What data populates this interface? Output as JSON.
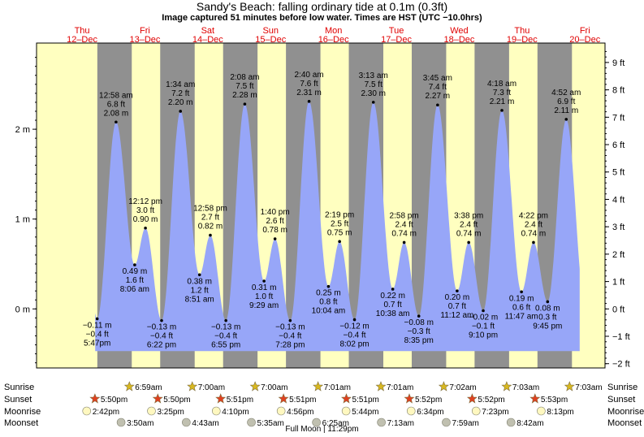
{
  "header": {
    "title": "Sandy's Beach: falling  ordinary tide at 0.1m (0.3ft)",
    "subtitle": "Image captured 51 minutes before low water. Times are HST (UTC −10.0hrs)"
  },
  "chart_data": {
    "type": "area",
    "title": "Sandy's Beach: falling  ordinary tide at 0.1m (0.3ft)",
    "days": [
      {
        "name": "Thu",
        "date": "12–Dec"
      },
      {
        "name": "Fri",
        "date": "13–Dec"
      },
      {
        "name": "Sat",
        "date": "14–Dec"
      },
      {
        "name": "Sun",
        "date": "15–Dec"
      },
      {
        "name": "Mon",
        "date": "16–Dec"
      },
      {
        "name": "Tue",
        "date": "17–Dec"
      },
      {
        "name": "Wed",
        "date": "18–Dec"
      },
      {
        "name": "Thu",
        "date": "19–Dec"
      },
      {
        "name": "Fri",
        "date": "20–Dec"
      }
    ],
    "left_axis": {
      "unit": "m",
      "ticks": [
        {
          "v": 0,
          "label": "0 m"
        },
        {
          "v": 1,
          "label": "1 m"
        },
        {
          "v": 2,
          "label": "2 m"
        }
      ]
    },
    "right_axis": {
      "unit": "ft",
      "ticks": [
        "−2 ft",
        "−1 ft",
        "0 ft",
        "1 ft",
        "2 ft",
        "3 ft",
        "4 ft",
        "5 ft",
        "6 ft",
        "7 ft",
        "8 ft",
        "9 ft"
      ]
    },
    "ylim_m": [
      -0.73,
      2.91
    ],
    "tides": [
      {
        "time": "5:47pm",
        "ft": "−0.4 ft",
        "m": "−0.11 m",
        "hour": 17.78,
        "level": -0.11,
        "type": "low"
      },
      {
        "time": "12:58 am",
        "ft": "6.8 ft",
        "m": "2.08 m",
        "hour": 24.97,
        "level": 2.08,
        "type": "high"
      },
      {
        "time": "8:06 am",
        "ft": "1.6 ft",
        "m": "0.49 m",
        "hour": 32.1,
        "level": 0.49,
        "type": "low"
      },
      {
        "time": "12:12 pm",
        "ft": "3.0 ft",
        "m": "0.90 m",
        "hour": 36.2,
        "level": 0.9,
        "type": "high"
      },
      {
        "time": "6:22 pm",
        "ft": "−0.4 ft",
        "m": "−0.13 m",
        "hour": 42.37,
        "level": -0.13,
        "type": "low"
      },
      {
        "time": "1:34 am",
        "ft": "7.2 ft",
        "m": "2.20 m",
        "hour": 49.57,
        "level": 2.2,
        "type": "high"
      },
      {
        "time": "8:51 am",
        "ft": "1.2 ft",
        "m": "0.38 m",
        "hour": 56.85,
        "level": 0.38,
        "type": "low"
      },
      {
        "time": "12:58 pm",
        "ft": "2.7 ft",
        "m": "0.82 m",
        "hour": 60.97,
        "level": 0.82,
        "type": "high"
      },
      {
        "time": "6:55 pm",
        "ft": "−0.4 ft",
        "m": "−0.13 m",
        "hour": 66.92,
        "level": -0.13,
        "type": "low"
      },
      {
        "time": "2:08 am",
        "ft": "7.5 ft",
        "m": "2.28 m",
        "hour": 74.13,
        "level": 2.28,
        "type": "high"
      },
      {
        "time": "9:29 am",
        "ft": "1.0 ft",
        "m": "0.31 m",
        "hour": 81.48,
        "level": 0.31,
        "type": "low"
      },
      {
        "time": "1:40 pm",
        "ft": "2.6 ft",
        "m": "0.78 m",
        "hour": 85.67,
        "level": 0.78,
        "type": "high"
      },
      {
        "time": "7:28 pm",
        "ft": "−0.4 ft",
        "m": "−0.13 m",
        "hour": 91.47,
        "level": -0.13,
        "type": "low"
      },
      {
        "time": "2:40 am",
        "ft": "7.6 ft",
        "m": "2.31 m",
        "hour": 98.67,
        "level": 2.31,
        "type": "high"
      },
      {
        "time": "10:04 am",
        "ft": "0.8 ft",
        "m": "0.25 m",
        "hour": 106.07,
        "level": 0.25,
        "type": "low"
      },
      {
        "time": "2:19 pm",
        "ft": "2.5 ft",
        "m": "0.75 m",
        "hour": 110.32,
        "level": 0.75,
        "type": "high"
      },
      {
        "time": "8:02 pm",
        "ft": "−0.4 ft",
        "m": "−0.12 m",
        "hour": 116.03,
        "level": -0.12,
        "type": "low"
      },
      {
        "time": "3:13 am",
        "ft": "7.5 ft",
        "m": "2.30 m",
        "hour": 123.22,
        "level": 2.3,
        "type": "high"
      },
      {
        "time": "10:38 am",
        "ft": "0.7 ft",
        "m": "0.22 m",
        "hour": 130.63,
        "level": 0.22,
        "type": "low"
      },
      {
        "time": "2:58 pm",
        "ft": "2.4 ft",
        "m": "0.74 m",
        "hour": 134.97,
        "level": 0.74,
        "type": "high"
      },
      {
        "time": "8:35 pm",
        "ft": "−0.3 ft",
        "m": "−0.08 m",
        "hour": 140.58,
        "level": -0.08,
        "type": "low"
      },
      {
        "time": "3:45 am",
        "ft": "7.4 ft",
        "m": "2.27 m",
        "hour": 147.75,
        "level": 2.27,
        "type": "high"
      },
      {
        "time": "11:12 am",
        "ft": "0.7 ft",
        "m": "0.20 m",
        "hour": 155.2,
        "level": 0.2,
        "type": "low"
      },
      {
        "time": "3:38 pm",
        "ft": "2.4 ft",
        "m": "0.74 m",
        "hour": 159.63,
        "level": 0.74,
        "type": "high"
      },
      {
        "time": "9:10 pm",
        "ft": "−0.1 ft",
        "m": "−0.02 m",
        "hour": 165.17,
        "level": -0.02,
        "type": "low"
      },
      {
        "time": "4:18 am",
        "ft": "7.3 ft",
        "m": "2.21 m",
        "hour": 172.3,
        "level": 2.21,
        "type": "high"
      },
      {
        "time": "11:47 am",
        "ft": "0.6 ft",
        "m": "0.19 m",
        "hour": 179.78,
        "level": 0.19,
        "type": "low"
      },
      {
        "time": "4:22 pm",
        "ft": "2.4 ft",
        "m": "0.74 m",
        "hour": 184.37,
        "level": 0.74,
        "type": "high"
      },
      {
        "time": "9:45 pm",
        "ft": "0.3 ft",
        "m": "0.08 m",
        "hour": 189.75,
        "level": 0.08,
        "type": "low"
      },
      {
        "time": "4:52 am",
        "ft": "6.9 ft",
        "m": "2.11 m",
        "hour": 196.87,
        "level": 2.11,
        "type": "high"
      }
    ],
    "curve_hour_range": [
      17.0,
      202.0
    ],
    "night_bands_hours": [
      [
        17.83,
        30.98
      ],
      [
        41.83,
        55.0
      ],
      [
        65.85,
        79.0
      ],
      [
        89.85,
        103.02
      ],
      [
        113.85,
        127.02
      ],
      [
        137.87,
        151.03
      ],
      [
        161.87,
        175.05
      ],
      [
        185.88,
        199.05
      ]
    ],
    "colors": {
      "daylight": "#ffffc0",
      "night": "#909090",
      "water": "#97a6f8",
      "water_line": "#7088e8",
      "day_label": "#e00000"
    }
  },
  "rows": {
    "sunrise": {
      "label": "Sunrise",
      "icon": "sun-icon",
      "color": "#d8b820",
      "events": [
        {
          "time": "6:59am",
          "hour": 30.98
        },
        {
          "time": "7:00am",
          "hour": 55.0
        },
        {
          "time": "7:00am",
          "hour": 79.0
        },
        {
          "time": "7:01am",
          "hour": 103.02
        },
        {
          "time": "7:01am",
          "hour": 127.02
        },
        {
          "time": "7:02am",
          "hour": 151.03
        },
        {
          "time": "7:03am",
          "hour": 175.05
        },
        {
          "time": "7:03am",
          "hour": 199.05
        }
      ]
    },
    "sunset": {
      "label": "Sunset",
      "icon": "sun-icon",
      "color": "#e04020",
      "events": [
        {
          "time": "5:50pm",
          "hour": 17.83
        },
        {
          "time": "5:50pm",
          "hour": 41.83
        },
        {
          "time": "5:51pm",
          "hour": 65.85
        },
        {
          "time": "5:51pm",
          "hour": 89.85
        },
        {
          "time": "5:51pm",
          "hour": 113.85
        },
        {
          "time": "5:52pm",
          "hour": 137.87
        },
        {
          "time": "5:52pm",
          "hour": 161.87
        },
        {
          "time": "5:53pm",
          "hour": 185.88
        }
      ]
    },
    "moonrise": {
      "label": "Moonrise",
      "icon": "moon-icon",
      "color": "#fff8c0",
      "events": [
        {
          "time": "2:42pm",
          "hour": 14.7
        },
        {
          "time": "3:25pm",
          "hour": 39.42
        },
        {
          "time": "4:10pm",
          "hour": 64.17
        },
        {
          "time": "4:56pm",
          "hour": 88.93
        },
        {
          "time": "5:44pm",
          "hour": 113.73
        },
        {
          "time": "6:34pm",
          "hour": 138.57
        },
        {
          "time": "7:23pm",
          "hour": 163.38
        },
        {
          "time": "8:13pm",
          "hour": 188.22
        }
      ]
    },
    "moonset": {
      "label": "Moonset",
      "icon": "moon-icon",
      "color": "#c0c0b0",
      "events": [
        {
          "time": "3:50am",
          "hour": 27.83
        },
        {
          "time": "4:43am",
          "hour": 52.72
        },
        {
          "time": "5:35am",
          "hour": 77.58
        },
        {
          "time": "6:25am",
          "hour": 102.42
        },
        {
          "time": "7:13am",
          "hour": 127.22
        },
        {
          "time": "7:59am",
          "hour": 151.98
        },
        {
          "time": "8:42am",
          "hour": 176.7
        }
      ]
    }
  },
  "footer": {
    "full_moon": "Full Moon | 11:29pm"
  }
}
